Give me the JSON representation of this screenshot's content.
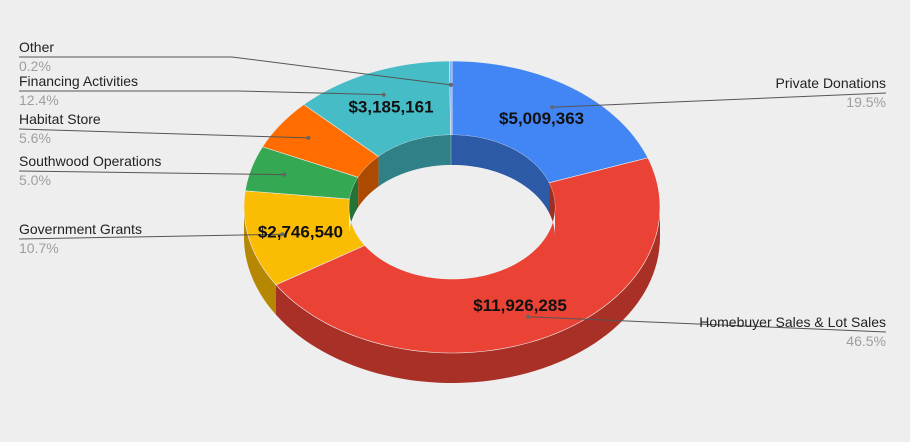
{
  "chart_data": {
    "type": "pie",
    "style": "3d-donut",
    "legend": "none",
    "slices": [
      {
        "label": "Private Donations",
        "value": 5009363,
        "percent_label": "19.5%",
        "value_label": "$5,009,363",
        "color": "#4285f4"
      },
      {
        "label": "Homebuyer Sales & Lot Sales",
        "value": 11926285,
        "percent_label": "46.5%",
        "value_label": "$11,926,285",
        "color": "#ea4335"
      },
      {
        "label": "Government Grants",
        "value": 2746540,
        "percent_label": "10.7%",
        "value_label": "$2,746,540",
        "color": "#fbbc04"
      },
      {
        "label": "Southwood Operations",
        "value": 1283000,
        "percent_label": "5.0%",
        "value_label": "",
        "color": "#34a853"
      },
      {
        "label": "Habitat Store",
        "value": 1437000,
        "percent_label": "5.6%",
        "value_label": "",
        "color": "#ff6d01"
      },
      {
        "label": "Financing Activities",
        "value": 3185161,
        "percent_label": "12.4%",
        "value_label": "$3,185,161",
        "color": "#46bdc6"
      },
      {
        "label": "Other",
        "value": 51000,
        "percent_label": "0.2%",
        "value_label": "",
        "color": "#7baaf7"
      }
    ]
  }
}
